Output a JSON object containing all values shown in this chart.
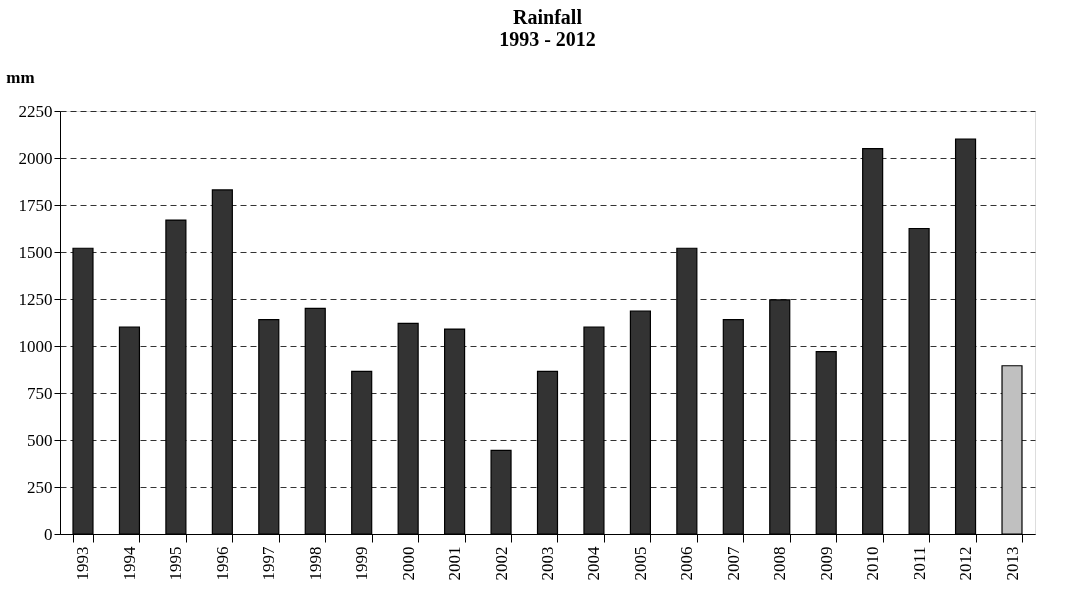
{
  "chart_data": {
    "type": "bar",
    "title": "Rainfall",
    "subtitle": "1993 - 2012",
    "ylabel": "mm",
    "categories": [
      "1993",
      "1994",
      "1995",
      "1996",
      "1997",
      "1998",
      "1999",
      "2000",
      "2001",
      "2002",
      "2003",
      "2004",
      "2005",
      "2006",
      "2007",
      "2008",
      "2009",
      "2010",
      "2011",
      "2012",
      "2013"
    ],
    "values": [
      1520,
      1100,
      1670,
      1830,
      1140,
      1200,
      865,
      1120,
      1090,
      445,
      865,
      1100,
      1185,
      1520,
      1140,
      1245,
      970,
      2050,
      1625,
      2100,
      895
    ],
    "colors": [
      "#333333",
      "#333333",
      "#333333",
      "#333333",
      "#333333",
      "#333333",
      "#333333",
      "#333333",
      "#333333",
      "#333333",
      "#333333",
      "#333333",
      "#333333",
      "#333333",
      "#333333",
      "#333333",
      "#333333",
      "#333333",
      "#333333",
      "#333333",
      "#c0c0c0"
    ],
    "ylim": [
      0,
      2250
    ],
    "yticks": [
      0,
      250,
      500,
      750,
      1000,
      1250,
      1500,
      1750,
      2000,
      2250
    ],
    "grid": "y"
  }
}
